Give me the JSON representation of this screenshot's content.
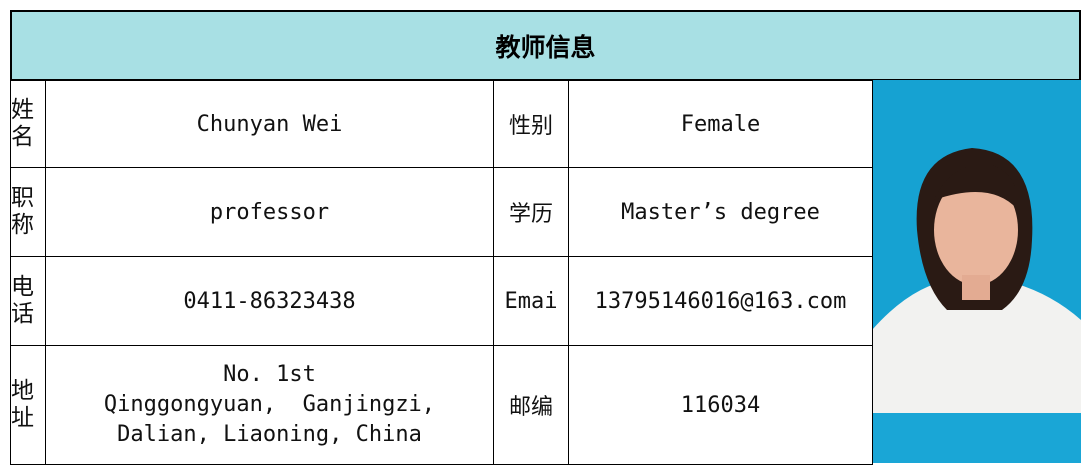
{
  "header": {
    "title": "教师信息"
  },
  "table": {
    "rows": [
      [
        "姓名",
        "Chunyan Wei",
        "性别",
        "Female"
      ],
      [
        "职称",
        "professor",
        "学历",
        "Master’s degree"
      ],
      [
        "电话",
        "0411-86323438",
        "Emai",
        "13795146016@163.com"
      ],
      [
        "地址",
        [
          "No. 1st",
          "Qinggongyuan,  Ganjingzi,",
          "Dalian, Liaoning, China"
        ],
        "邮编",
        "116034"
      ]
    ]
  }
}
